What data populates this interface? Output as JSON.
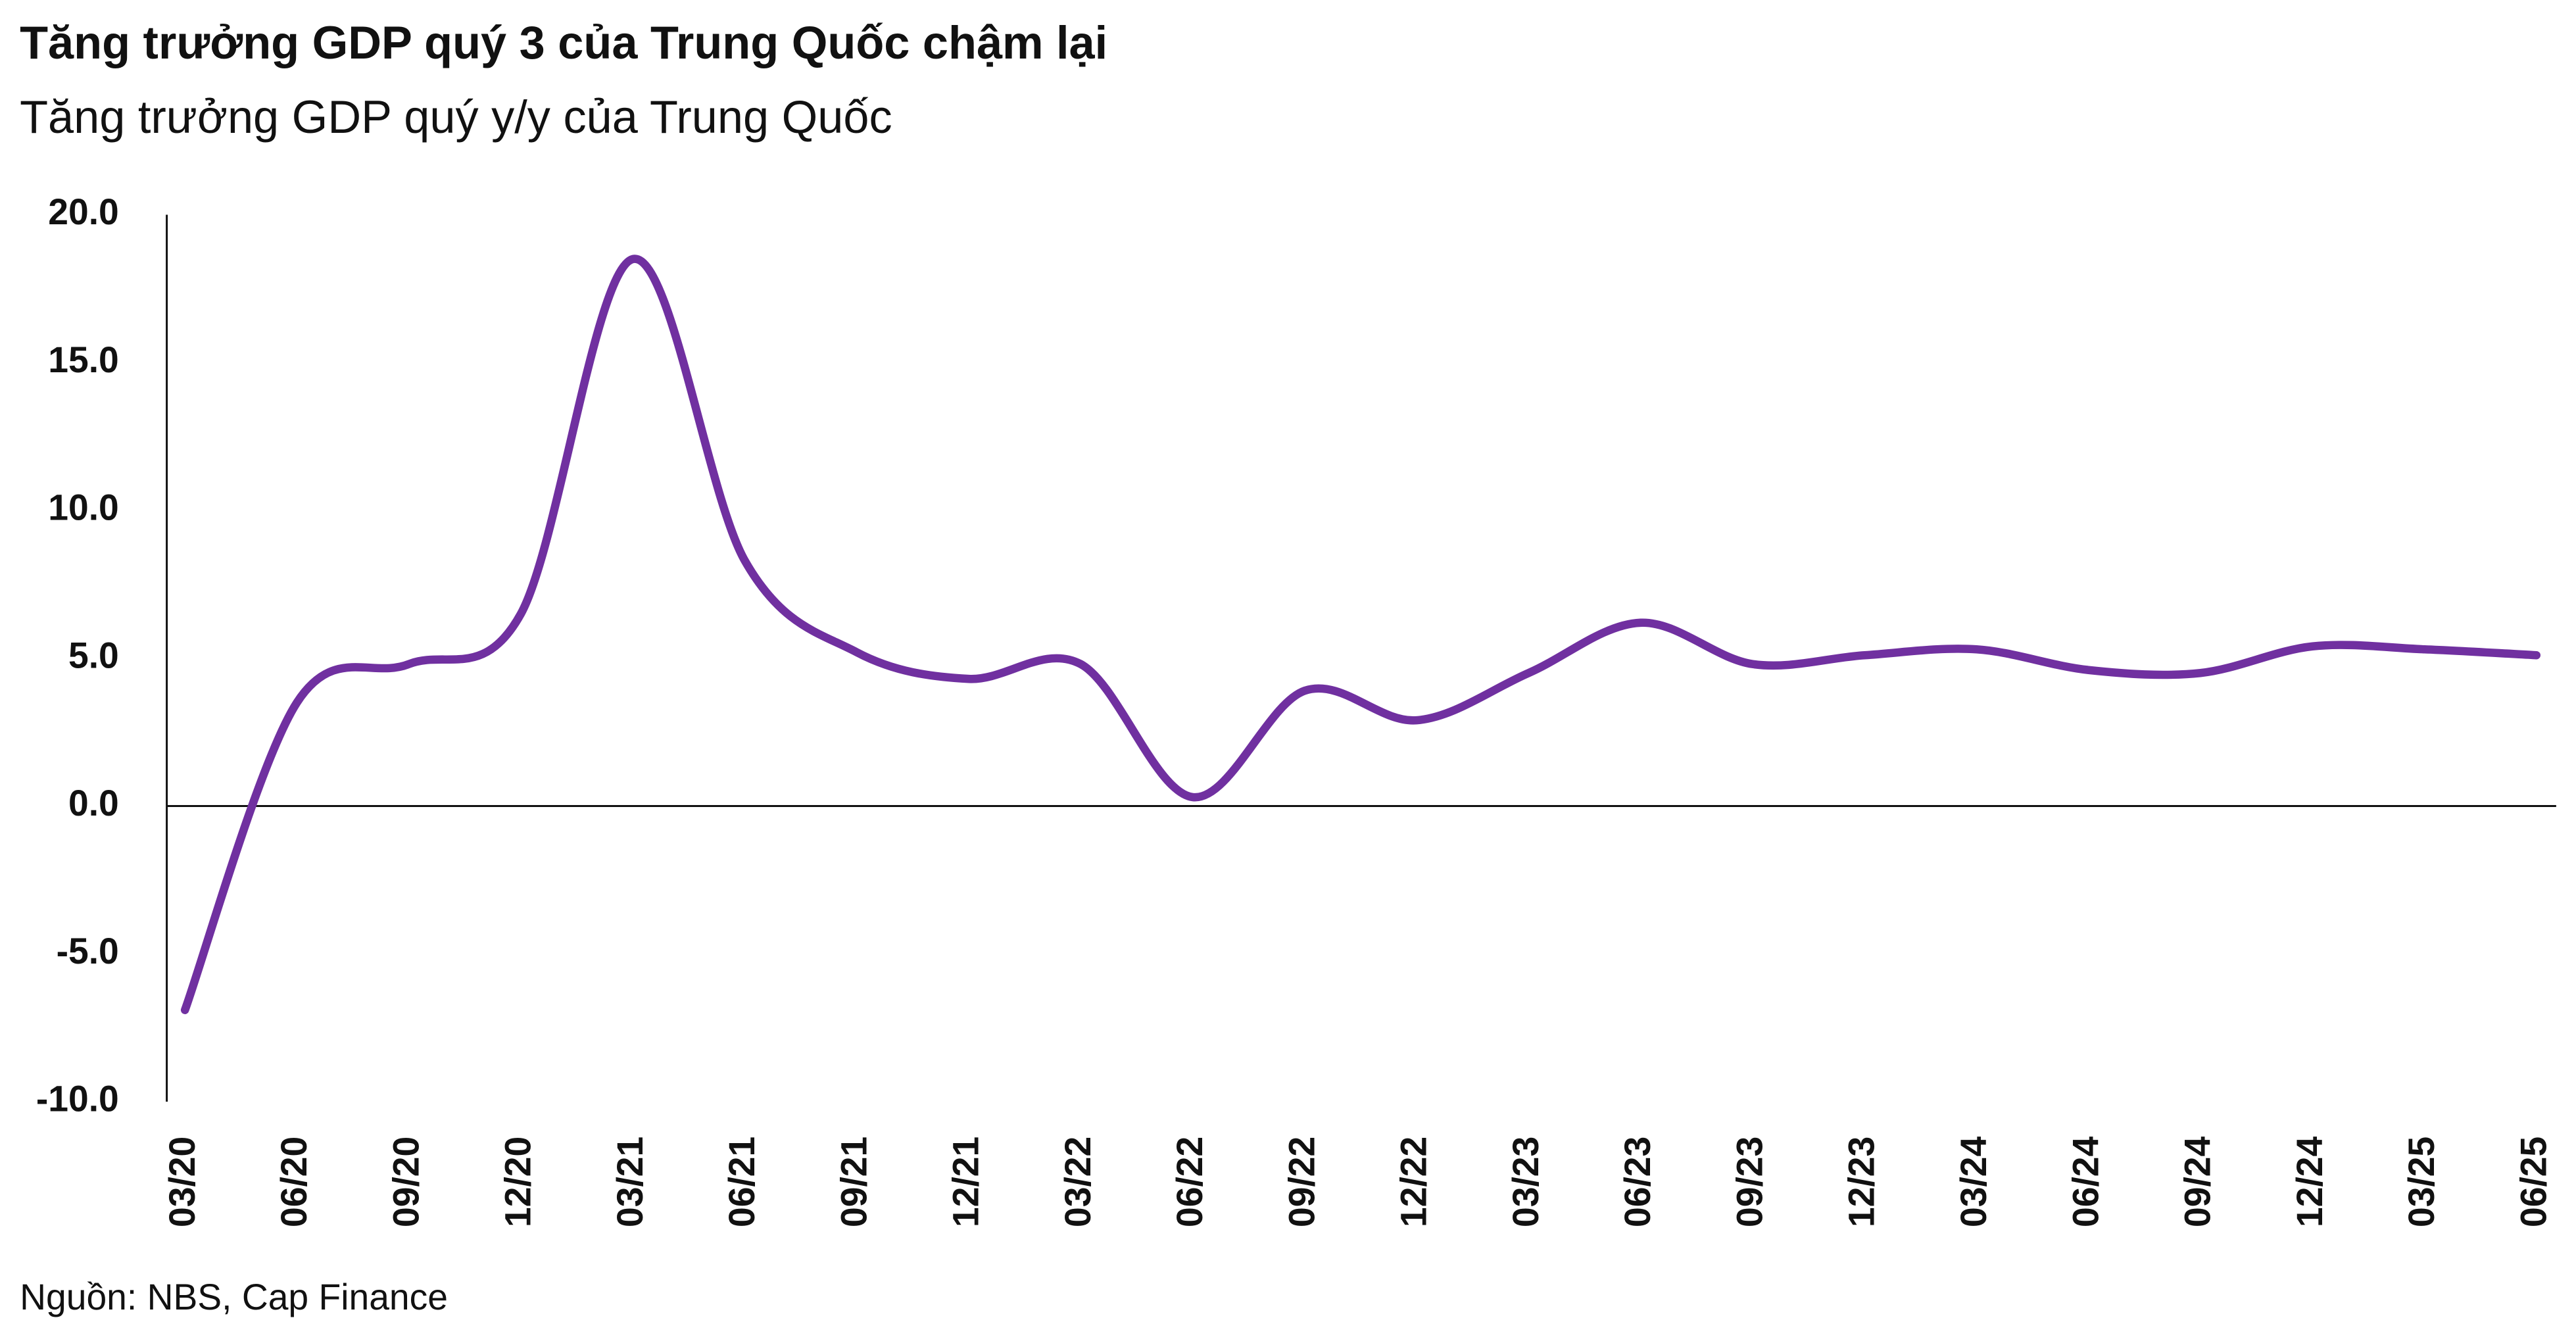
{
  "chart_data": {
    "type": "line",
    "title": "Tăng trưởng GDP quý 3 của Trung Quốc chậm lại",
    "subtitle": "Tăng trưởng GDP quý y/y của Trung Quốc",
    "source": "Nguồn: NBS, Cap Finance",
    "categories": [
      "03/20",
      "06/20",
      "09/20",
      "12/20",
      "03/21",
      "06/21",
      "09/21",
      "12/21",
      "03/22",
      "06/22",
      "09/22",
      "12/22",
      "03/23",
      "06/23",
      "09/23",
      "12/23",
      "03/24",
      "06/24",
      "09/24",
      "12/24",
      "03/25",
      "06/25"
    ],
    "values": [
      -6.9,
      3.5,
      4.8,
      6.5,
      18.5,
      8.3,
      5.2,
      4.3,
      4.8,
      0.3,
      3.9,
      2.9,
      4.5,
      6.2,
      4.8,
      5.1,
      5.3,
      4.6,
      4.5,
      5.4,
      5.3,
      5.1
    ],
    "color": "#7030a0",
    "ylim": [
      -10,
      20
    ],
    "yticks": [
      {
        "value": -10,
        "label": "-10.0"
      },
      {
        "value": -5,
        "label": "-5.0"
      },
      {
        "value": 0,
        "label": "0.0"
      },
      {
        "value": 5,
        "label": "5.0"
      },
      {
        "value": 10,
        "label": "10.0"
      },
      {
        "value": 15,
        "label": "15.0"
      },
      {
        "value": 20,
        "label": "20.0"
      }
    ],
    "grid": false
  }
}
